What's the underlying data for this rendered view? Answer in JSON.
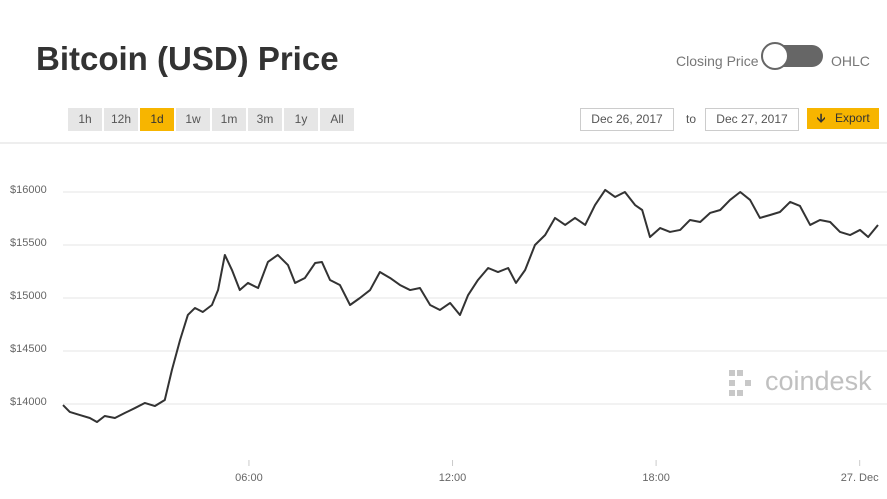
{
  "ui": {
    "title": "Bitcoin (USD) Price",
    "toggle_left": "Closing Price",
    "toggle_right": "OHLC",
    "ranges": [
      "1h",
      "12h",
      "1d",
      "1w",
      "1m",
      "3m",
      "1y",
      "All"
    ],
    "selected_range": 2,
    "date_from": "Dec 26, 2017",
    "date_sep": "to",
    "date_to": "Dec 27, 2017",
    "export": "Export",
    "watermark": "coindesk"
  },
  "chart_data": {
    "type": "line",
    "color": "#333333",
    "grid": true,
    "xlim": [
      0.52,
      24.54
    ],
    "ylim": [
      13472,
      16462
    ],
    "xticks": [
      {
        "value": 6,
        "label": "06:00"
      },
      {
        "value": 12,
        "label": "12:00"
      },
      {
        "value": 18,
        "label": "18:00"
      },
      {
        "value": 24,
        "label": "27. Dec"
      }
    ],
    "yticks": [
      {
        "value": 14000,
        "label": "$14000"
      },
      {
        "value": 14500,
        "label": "$14500"
      },
      {
        "value": 15000,
        "label": "$15000"
      },
      {
        "value": 15500,
        "label": "$15500"
      },
      {
        "value": 16000,
        "label": "$16000"
      }
    ],
    "x": [
      0.52,
      0.72,
      1.02,
      1.31,
      1.52,
      1.75,
      2.05,
      2.34,
      2.64,
      2.93,
      3.23,
      3.52,
      3.73,
      3.97,
      4.2,
      4.41,
      4.64,
      4.91,
      5.09,
      5.29,
      5.5,
      5.73,
      5.97,
      6.27,
      6.56,
      6.85,
      7.15,
      7.36,
      7.65,
      7.95,
      8.15,
      8.39,
      8.68,
      8.98,
      9.27,
      9.57,
      9.86,
      10.16,
      10.45,
      10.75,
      11.04,
      11.34,
      11.63,
      11.93,
      12.22,
      12.46,
      12.75,
      13.05,
      13.34,
      13.64,
      13.87,
      14.14,
      14.43,
      14.73,
      15.02,
      15.32,
      15.61,
      15.91,
      16.2,
      16.5,
      16.79,
      17.08,
      17.38,
      17.59,
      17.82,
      18.12,
      18.41,
      18.71,
      19.0,
      19.3,
      19.59,
      19.89,
      20.18,
      20.48,
      20.77,
      21.06,
      21.36,
      21.65,
      21.95,
      22.24,
      22.54,
      22.83,
      23.13,
      23.42,
      23.72,
      24.01,
      24.25,
      24.54
    ],
    "values": [
      13990,
      13925,
      13896,
      13868,
      13830,
      13887,
      13868,
      13915,
      13962,
      14010,
      13981,
      14038,
      14321,
      14604,
      14840,
      14906,
      14868,
      14934,
      15075,
      15406,
      15264,
      15075,
      15142,
      15094,
      15340,
      15406,
      15311,
      15142,
      15189,
      15330,
      15340,
      15170,
      15123,
      14934,
      15000,
      15075,
      15245,
      15189,
      15123,
      15075,
      15094,
      14934,
      14887,
      14953,
      14840,
      15028,
      15170,
      15283,
      15245,
      15283,
      15142,
      15264,
      15500,
      15594,
      15755,
      15689,
      15755,
      15689,
      15877,
      16019,
      15953,
      16000,
      15877,
      15830,
      15575,
      15660,
      15623,
      15642,
      15736,
      15717,
      15802,
      15830,
      15925,
      16000,
      15925,
      15755,
      15783,
      15811,
      15906,
      15868,
      15689,
      15736,
      15717,
      15623,
      15594,
      15642,
      15575,
      15689
    ]
  }
}
